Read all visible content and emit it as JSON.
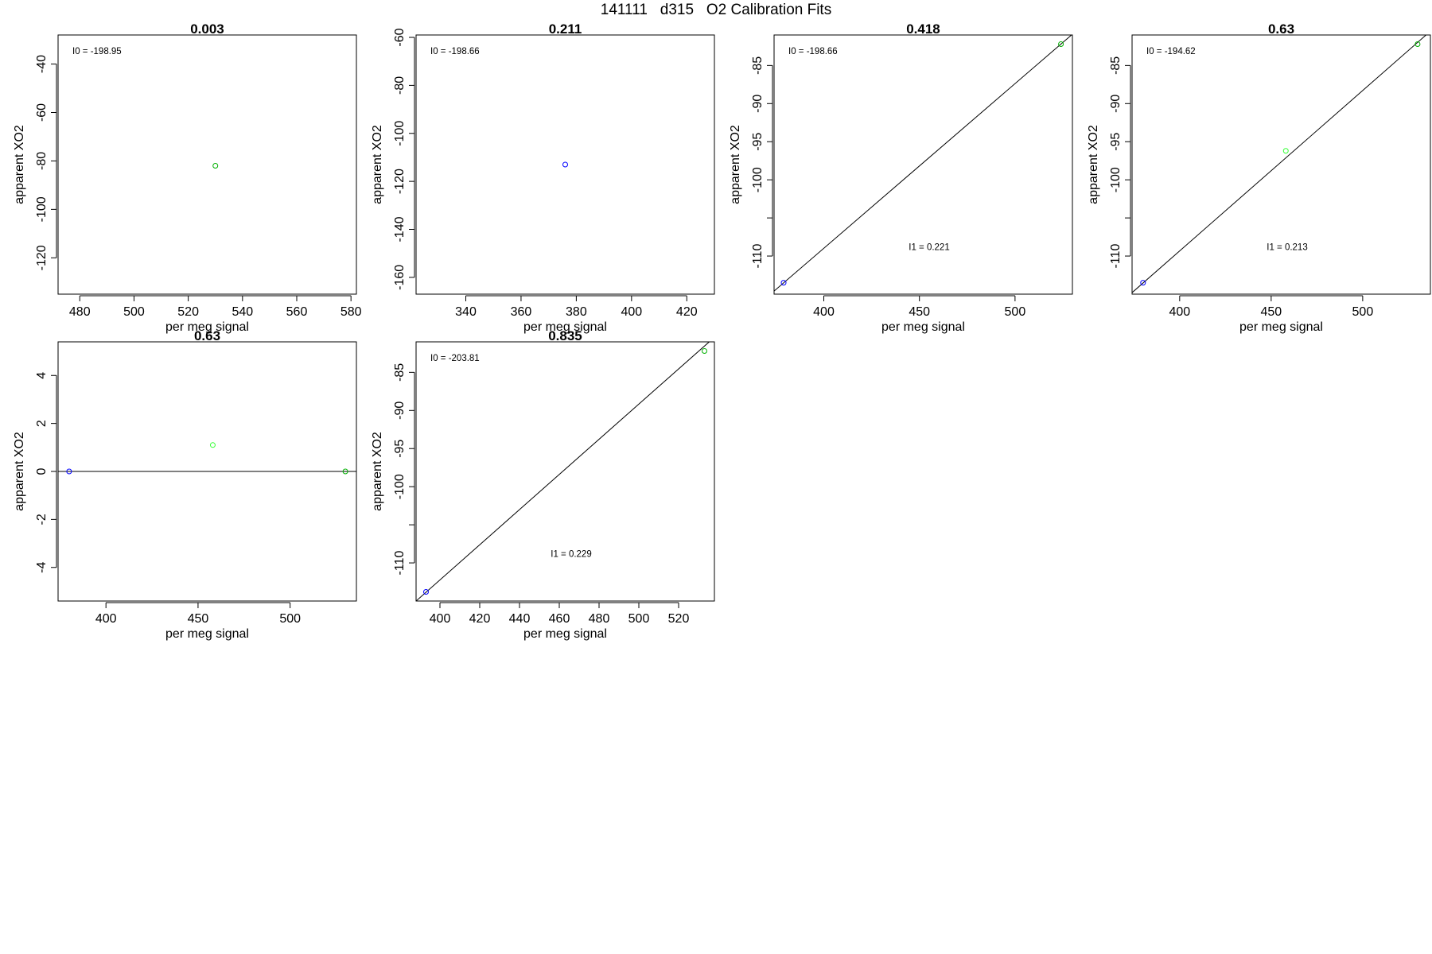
{
  "page_title": "141111   d315   O2 Calibration Fits",
  "colors": {
    "blue": "#0000ff",
    "green": "#00b000",
    "light_green": "#33ff33",
    "axis": "#000000"
  },
  "chart_data": [
    {
      "type": "scatter",
      "title": "0.003",
      "xlabel": "per meg signal",
      "ylabel": "apparent XO2",
      "xlim": [
        472,
        582
      ],
      "ylim": [
        -135,
        -28
      ],
      "xticks": [
        480,
        500,
        520,
        540,
        560,
        580
      ],
      "yticks": [
        -40,
        -60,
        -80,
        -100,
        -120
      ],
      "points": [
        {
          "x": 530,
          "y": -82,
          "color": "green"
        }
      ],
      "fit_line": null,
      "annotations": [
        {
          "text": "I0 =  -198.95",
          "pos": "top-left"
        }
      ]
    },
    {
      "type": "scatter",
      "title": "0.211",
      "xlabel": "per meg signal",
      "ylabel": "apparent XO2",
      "xlim": [
        322,
        430
      ],
      "ylim": [
        -167,
        -59
      ],
      "xticks": [
        340,
        360,
        380,
        400,
        420
      ],
      "yticks": [
        -60,
        -80,
        -100,
        -120,
        -140,
        -160
      ],
      "points": [
        {
          "x": 376,
          "y": -113,
          "color": "blue"
        }
      ],
      "fit_line": null,
      "annotations": [
        {
          "text": "I0 =  -198.66",
          "pos": "top-left"
        }
      ]
    },
    {
      "type": "scatter",
      "title": "0.418",
      "xlabel": "per meg signal",
      "ylabel": "apparent XO2",
      "xlim": [
        374,
        530
      ],
      "ylim": [
        -115,
        -81
      ],
      "xticks": [
        400,
        450,
        500
      ],
      "yticks": [
        -85,
        -90,
        -95,
        -100,
        -105,
        -110
      ],
      "ytick_labels": [
        "-85",
        "-90",
        "-95",
        "-100",
        "",
        "-110"
      ],
      "points": [
        {
          "x": 379,
          "y": -113.5,
          "color": "blue"
        },
        {
          "x": 524,
          "y": -82.2,
          "color": "green"
        }
      ],
      "fit_line": {
        "x": [
          374,
          530
        ],
        "y": [
          -114.6,
          -80.9
        ]
      },
      "annotations": [
        {
          "text": "I0 =  -198.66",
          "pos": "top-left"
        },
        {
          "text": "I1 =  0.221",
          "pos": "lower-middle"
        }
      ]
    },
    {
      "type": "scatter",
      "title": "0.63",
      "xlabel": "per meg signal",
      "ylabel": "apparent XO2",
      "xlim": [
        374,
        537
      ],
      "ylim": [
        -115,
        -81
      ],
      "xticks": [
        400,
        450,
        500
      ],
      "yticks": [
        -85,
        -90,
        -95,
        -100,
        -105,
        -110
      ],
      "ytick_labels": [
        "-85",
        "-90",
        "-95",
        "-100",
        "",
        "-110"
      ],
      "points": [
        {
          "x": 380,
          "y": -113.5,
          "color": "blue"
        },
        {
          "x": 458,
          "y": -96.2,
          "color": "light_green"
        },
        {
          "x": 530,
          "y": -82.2,
          "color": "green"
        }
      ],
      "fit_line": {
        "x": [
          374,
          537
        ],
        "y": [
          -114.8,
          -80.5
        ]
      },
      "annotations": [
        {
          "text": "I0 =  -194.62",
          "pos": "top-left"
        },
        {
          "text": "I1 =  0.213",
          "pos": "lower-middle"
        }
      ]
    },
    {
      "type": "scatter",
      "title": "0.63",
      "xlabel": "per meg signal",
      "ylabel": "apparent XO2",
      "xlim": [
        374,
        536
      ],
      "ylim": [
        -5.4,
        5.4
      ],
      "xticks": [
        400,
        450,
        500
      ],
      "yticks": [
        4,
        2,
        0,
        -2,
        -4
      ],
      "ytick_labels": [
        "4",
        "2",
        "0",
        "-2",
        "-4"
      ],
      "points": [
        {
          "x": 380,
          "y": 0,
          "color": "blue"
        },
        {
          "x": 458,
          "y": 1.1,
          "color": "light_green"
        },
        {
          "x": 530,
          "y": 0,
          "color": "green"
        }
      ],
      "fit_line": {
        "x": [
          374,
          536
        ],
        "y": [
          0,
          0
        ]
      },
      "annotations": []
    },
    {
      "type": "scatter",
      "title": "0.835",
      "xlabel": "per meg signal",
      "ylabel": "apparent XO2",
      "xlim": [
        388,
        538
      ],
      "ylim": [
        -115,
        -81
      ],
      "xticks": [
        400,
        420,
        440,
        460,
        480,
        500,
        520
      ],
      "yticks": [
        -85,
        -90,
        -95,
        -100,
        -105,
        -110
      ],
      "ytick_labels": [
        "-85",
        "-90",
        "-95",
        "-100",
        "",
        "-110"
      ],
      "points": [
        {
          "x": 393,
          "y": -113.8,
          "color": "blue"
        },
        {
          "x": 533,
          "y": -82.2,
          "color": "green"
        }
      ],
      "fit_line": {
        "x": [
          388,
          538
        ],
        "y": [
          -115,
          -80.4
        ]
      },
      "annotations": [
        {
          "text": "I0 =  -203.81",
          "pos": "top-left"
        },
        {
          "text": "I1 =  0.229",
          "pos": "lower-middle"
        }
      ]
    }
  ]
}
